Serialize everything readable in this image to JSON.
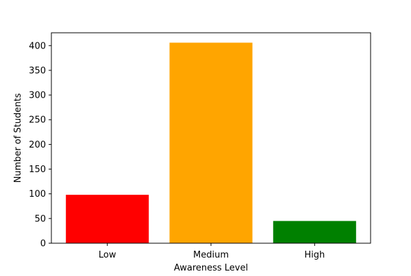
{
  "chart_data": {
    "type": "bar",
    "title": "",
    "xlabel": "Awareness Level",
    "ylabel": "Number of Students",
    "categories": [
      "Low",
      "Medium",
      "High"
    ],
    "values": [
      98,
      406,
      45
    ],
    "colors": [
      "#ff0000",
      "#ffa500",
      "#008000"
    ],
    "ylim": [
      0,
      426
    ],
    "yticks": [
      0,
      50,
      100,
      150,
      200,
      250,
      300,
      350,
      400
    ],
    "grid": false,
    "legend": "none"
  }
}
